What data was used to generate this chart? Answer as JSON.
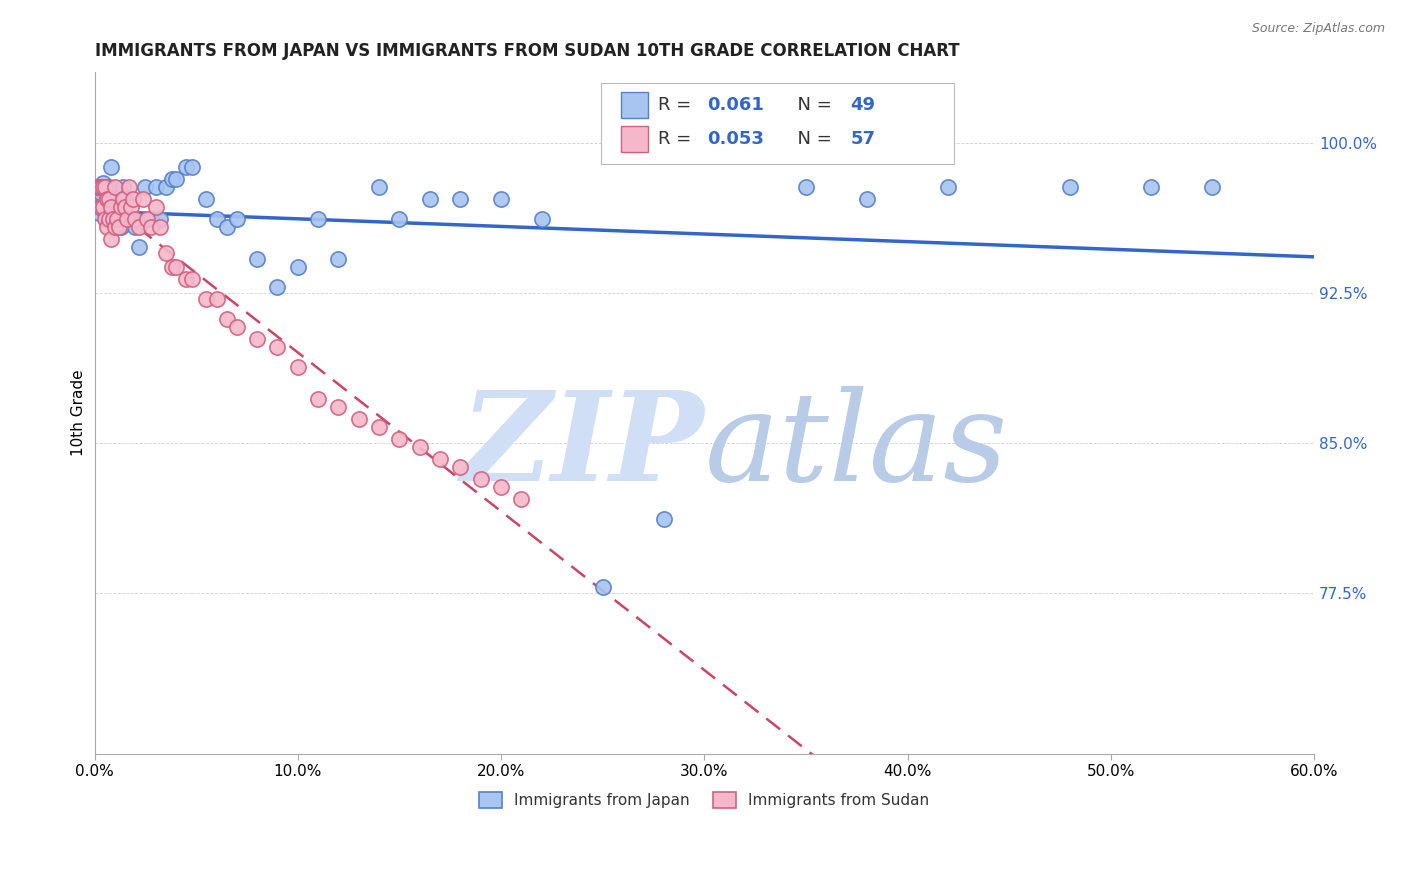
{
  "title": "IMMIGRANTS FROM JAPAN VS IMMIGRANTS FROM SUDAN 10TH GRADE CORRELATION CHART",
  "source": "Source: ZipAtlas.com",
  "ylabel": "10th Grade",
  "ytick_labels": [
    "77.5%",
    "85.0%",
    "92.5%",
    "100.0%"
  ],
  "ytick_values": [
    0.775,
    0.85,
    0.925,
    1.0
  ],
  "xlim": [
    0.0,
    0.6
  ],
  "ylim": [
    0.695,
    1.035
  ],
  "R_japan": 0.061,
  "N_japan": 49,
  "R_sudan": 0.053,
  "N_sudan": 57,
  "japan_color": "#a8c4f0",
  "sudan_color": "#f5b8cb",
  "japan_edge_color": "#5580cc",
  "sudan_edge_color": "#d06080",
  "japan_line_color": "#3366cc",
  "sudan_line_color": "#cc4466",
  "watermark_color": "#d0dff5",
  "japan_x": [
    0.002,
    0.003,
    0.004,
    0.005,
    0.006,
    0.007,
    0.008,
    0.009,
    0.01,
    0.011,
    0.012,
    0.013,
    0.014,
    0.015,
    0.018,
    0.02,
    0.022,
    0.025,
    0.028,
    0.03,
    0.032,
    0.035,
    0.038,
    0.04,
    0.045,
    0.048,
    0.055,
    0.06,
    0.065,
    0.07,
    0.08,
    0.09,
    0.1,
    0.11,
    0.12,
    0.14,
    0.15,
    0.165,
    0.18,
    0.2,
    0.22,
    0.25,
    0.28,
    0.35,
    0.38,
    0.42,
    0.48,
    0.52,
    0.55
  ],
  "japan_y": [
    0.965,
    0.975,
    0.98,
    0.968,
    0.972,
    0.978,
    0.988,
    0.972,
    0.968,
    0.962,
    0.972,
    0.958,
    0.978,
    0.972,
    0.962,
    0.958,
    0.948,
    0.978,
    0.962,
    0.978,
    0.962,
    0.978,
    0.982,
    0.982,
    0.988,
    0.988,
    0.972,
    0.962,
    0.958,
    0.962,
    0.942,
    0.928,
    0.938,
    0.962,
    0.942,
    0.978,
    0.962,
    0.972,
    0.972,
    0.972,
    0.962,
    0.778,
    0.812,
    0.978,
    0.972,
    0.978,
    0.978,
    0.978,
    0.978
  ],
  "sudan_x": [
    0.001,
    0.002,
    0.002,
    0.003,
    0.003,
    0.004,
    0.004,
    0.005,
    0.005,
    0.006,
    0.006,
    0.007,
    0.007,
    0.008,
    0.008,
    0.009,
    0.01,
    0.01,
    0.011,
    0.012,
    0.013,
    0.014,
    0.015,
    0.016,
    0.017,
    0.018,
    0.019,
    0.02,
    0.022,
    0.024,
    0.026,
    0.028,
    0.03,
    0.032,
    0.035,
    0.038,
    0.04,
    0.045,
    0.048,
    0.055,
    0.06,
    0.065,
    0.07,
    0.08,
    0.09,
    0.1,
    0.11,
    0.12,
    0.13,
    0.14,
    0.15,
    0.16,
    0.17,
    0.18,
    0.19,
    0.2,
    0.21
  ],
  "sudan_y": [
    0.978,
    0.978,
    0.968,
    0.978,
    0.968,
    0.978,
    0.968,
    0.978,
    0.962,
    0.972,
    0.958,
    0.972,
    0.962,
    0.968,
    0.952,
    0.962,
    0.958,
    0.978,
    0.962,
    0.958,
    0.968,
    0.972,
    0.968,
    0.962,
    0.978,
    0.968,
    0.972,
    0.962,
    0.958,
    0.972,
    0.962,
    0.958,
    0.968,
    0.958,
    0.945,
    0.938,
    0.938,
    0.932,
    0.932,
    0.922,
    0.922,
    0.912,
    0.908,
    0.902,
    0.898,
    0.888,
    0.872,
    0.868,
    0.862,
    0.858,
    0.852,
    0.848,
    0.842,
    0.838,
    0.832,
    0.828,
    0.822
  ]
}
